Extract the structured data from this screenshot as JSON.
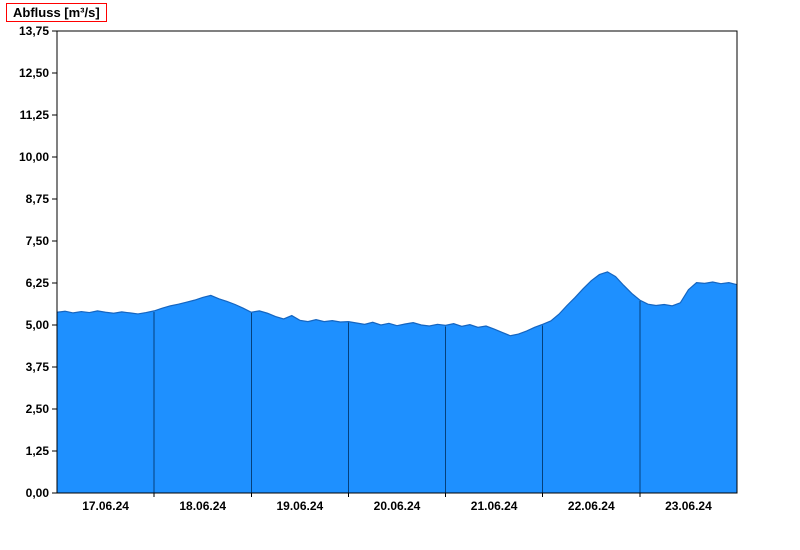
{
  "header": {
    "title": "Abfluss [m³/s]"
  },
  "chart_data": {
    "type": "area",
    "title": "Abfluss [m³/s]",
    "xlabel": "",
    "ylabel": "Abfluss [m³/s]",
    "legend_position": "none",
    "grid": "vertical day-boundary separators visible inside filled area only",
    "ylim": [
      0,
      13.75
    ],
    "y_tick_values": [
      0,
      1.25,
      2.5,
      3.75,
      5.0,
      6.25,
      7.5,
      8.75,
      10.0,
      11.25,
      12.5,
      13.75
    ],
    "y_tick_labels": [
      "0,00",
      "1,25",
      "2,50",
      "3,75",
      "5,00",
      "6,25",
      "7,50",
      "8,75",
      "10,00",
      "11,25",
      "12,50",
      "13,75"
    ],
    "x_day_labels": [
      "17.06.24",
      "18.06.24",
      "19.06.24",
      "20.06.24",
      "21.06.24",
      "22.06.24",
      "23.06.24"
    ],
    "x_domain_hours": [
      0,
      168
    ],
    "x_day_boundaries_hours": [
      24,
      48,
      72,
      96,
      120,
      144
    ],
    "series": [
      {
        "name": "Abfluss",
        "unit": "m³/s",
        "x_hours_start": 0,
        "x_hours_step": 2,
        "values": [
          5.38,
          5.41,
          5.36,
          5.4,
          5.37,
          5.42,
          5.38,
          5.35,
          5.39,
          5.36,
          5.33,
          5.37,
          5.42,
          5.5,
          5.57,
          5.62,
          5.68,
          5.74,
          5.82,
          5.88,
          5.78,
          5.7,
          5.61,
          5.5,
          5.38,
          5.42,
          5.35,
          5.25,
          5.18,
          5.28,
          5.14,
          5.1,
          5.16,
          5.1,
          5.13,
          5.09,
          5.1,
          5.06,
          5.02,
          5.08,
          5.0,
          5.05,
          4.98,
          5.03,
          5.07,
          5.0,
          4.97,
          5.02,
          4.99,
          5.04,
          4.96,
          5.01,
          4.93,
          4.97,
          4.88,
          4.78,
          4.68,
          4.73,
          4.82,
          4.93,
          5.02,
          5.12,
          5.32,
          5.58,
          5.82,
          6.08,
          6.32,
          6.5,
          6.58,
          6.44,
          6.18,
          5.94,
          5.74,
          5.62,
          5.58,
          5.61,
          5.57,
          5.66,
          6.05,
          6.26,
          6.24,
          6.28,
          6.23,
          6.26,
          6.2
        ]
      }
    ],
    "colors": {
      "fill": "#1E90FF",
      "line": "#1565C0",
      "day_grid": "#003366",
      "axis": "#000000",
      "tick_text": "#000000",
      "title_border": "#FF0000",
      "background": "#FFFFFF"
    }
  }
}
